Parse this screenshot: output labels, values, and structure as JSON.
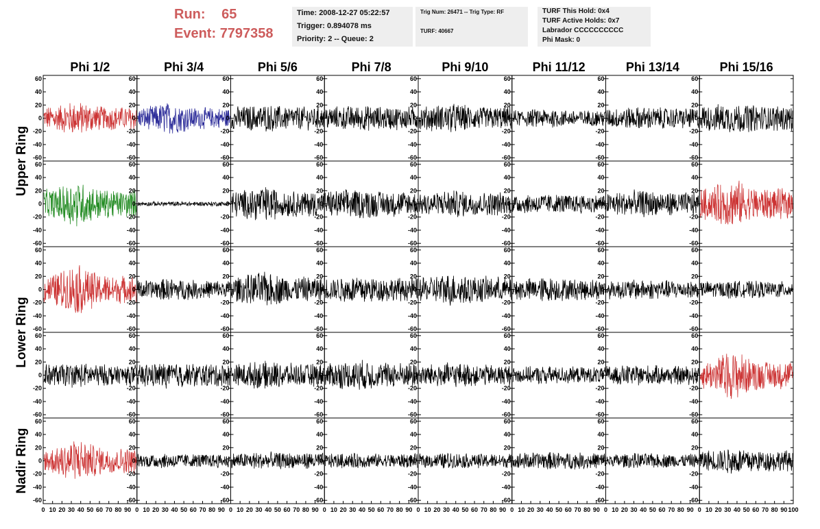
{
  "header": {
    "run_label": "Run:",
    "run_value": "65",
    "event_label": "Event:",
    "event_value": "7797358",
    "time_box": [
      "Time: 2008-12-27 05:22:57",
      "Trigger: 0.894078 ms",
      "Priority: 2 -- Queue: 2"
    ],
    "trig_box": [
      "Trig Num: 26471 -- Trig Type: RF",
      "TURF: 40667"
    ],
    "turf_box": [
      "TURF This Hold: 0x4",
      "TURF Active Holds: 0x7",
      "Labrador CCCCCCCCCC",
      "Phi Mask: 0"
    ]
  },
  "chart_data": {
    "type": "line",
    "columns": [
      "Phi 1/2",
      "Phi 3/4",
      "Phi 5/6",
      "Phi 7/8",
      "Phi 9/10",
      "Phi 11/12",
      "Phi 13/14",
      "Phi 15/16"
    ],
    "row_groups": [
      {
        "label": "Upper Ring",
        "rows": [
          0,
          1
        ]
      },
      {
        "label": "Lower Ring",
        "rows": [
          2,
          3
        ]
      },
      {
        "label": "Nadir Ring",
        "rows": [
          4
        ]
      }
    ],
    "ylim": [
      -65,
      65
    ],
    "y_ticks": [
      60,
      40,
      20,
      0,
      -20,
      -40,
      -60
    ],
    "xlim": [
      0,
      100
    ],
    "x_ticks": [
      0,
      10,
      20,
      30,
      40,
      50,
      60,
      70,
      80,
      90,
      100
    ],
    "samples_per_trace": 260,
    "colors": {
      "black": "#000000",
      "red": "#cc3333",
      "blue": "#2b2b99",
      "green": "#228b22"
    },
    "panels": [
      [
        {
          "color": "red",
          "amp": 10,
          "burst": 1.5
        },
        {
          "color": "blue",
          "amp": 9,
          "burst": 1.6
        },
        {
          "color": "black",
          "amp": 10,
          "burst": 1.2
        },
        {
          "color": "black",
          "amp": 10,
          "burst": 1.1
        },
        {
          "color": "black",
          "amp": 10,
          "burst": 1.3
        },
        {
          "color": "black",
          "amp": 7,
          "burst": 1.2
        },
        {
          "color": "black",
          "amp": 9,
          "burst": 1.1
        },
        {
          "color": "black",
          "amp": 11,
          "burst": 1.2
        }
      ],
      [
        {
          "color": "green",
          "amp": 12,
          "burst": 1.7
        },
        {
          "color": "black",
          "amp": 2,
          "burst": 1.0
        },
        {
          "color": "black",
          "amp": 11,
          "burst": 1.4
        },
        {
          "color": "black",
          "amp": 11,
          "burst": 1.2
        },
        {
          "color": "black",
          "amp": 10,
          "burst": 1.2
        },
        {
          "color": "black",
          "amp": 8,
          "burst": 1.1
        },
        {
          "color": "black",
          "amp": 10,
          "burst": 1.2
        },
        {
          "color": "red",
          "amp": 13,
          "burst": 1.7
        }
      ],
      [
        {
          "color": "red",
          "amp": 12,
          "burst": 1.9
        },
        {
          "color": "black",
          "amp": 8,
          "burst": 1.2
        },
        {
          "color": "black",
          "amp": 11,
          "burst": 1.4
        },
        {
          "color": "black",
          "amp": 10,
          "burst": 1.2
        },
        {
          "color": "black",
          "amp": 11,
          "burst": 1.3
        },
        {
          "color": "black",
          "amp": 9,
          "burst": 1.2
        },
        {
          "color": "black",
          "amp": 8,
          "burst": 1.1
        },
        {
          "color": "black",
          "amp": 7,
          "burst": 1.1
        }
      ],
      [
        {
          "color": "black",
          "amp": 9,
          "burst": 1.2
        },
        {
          "color": "black",
          "amp": 10,
          "burst": 1.1
        },
        {
          "color": "black",
          "amp": 10,
          "burst": 1.2
        },
        {
          "color": "black",
          "amp": 11,
          "burst": 1.2
        },
        {
          "color": "black",
          "amp": 9,
          "burst": 1.2
        },
        {
          "color": "black",
          "amp": 7,
          "burst": 1.1
        },
        {
          "color": "black",
          "amp": 8,
          "burst": 1.1
        },
        {
          "color": "red",
          "amp": 12,
          "burst": 1.8
        }
      ],
      [
        {
          "color": "red",
          "amp": 11,
          "burst": 1.8
        },
        {
          "color": "black",
          "amp": 6,
          "burst": 1.1
        },
        {
          "color": "black",
          "amp": 7,
          "burst": 1.1
        },
        {
          "color": "black",
          "amp": 6,
          "burst": 1.1
        },
        {
          "color": "black",
          "amp": 6,
          "burst": 1.2
        },
        {
          "color": "black",
          "amp": 7,
          "burst": 1.1
        },
        {
          "color": "black",
          "amp": 6,
          "burst": 1.1
        },
        {
          "color": "black",
          "amp": 9,
          "burst": 1.3
        }
      ]
    ]
  }
}
